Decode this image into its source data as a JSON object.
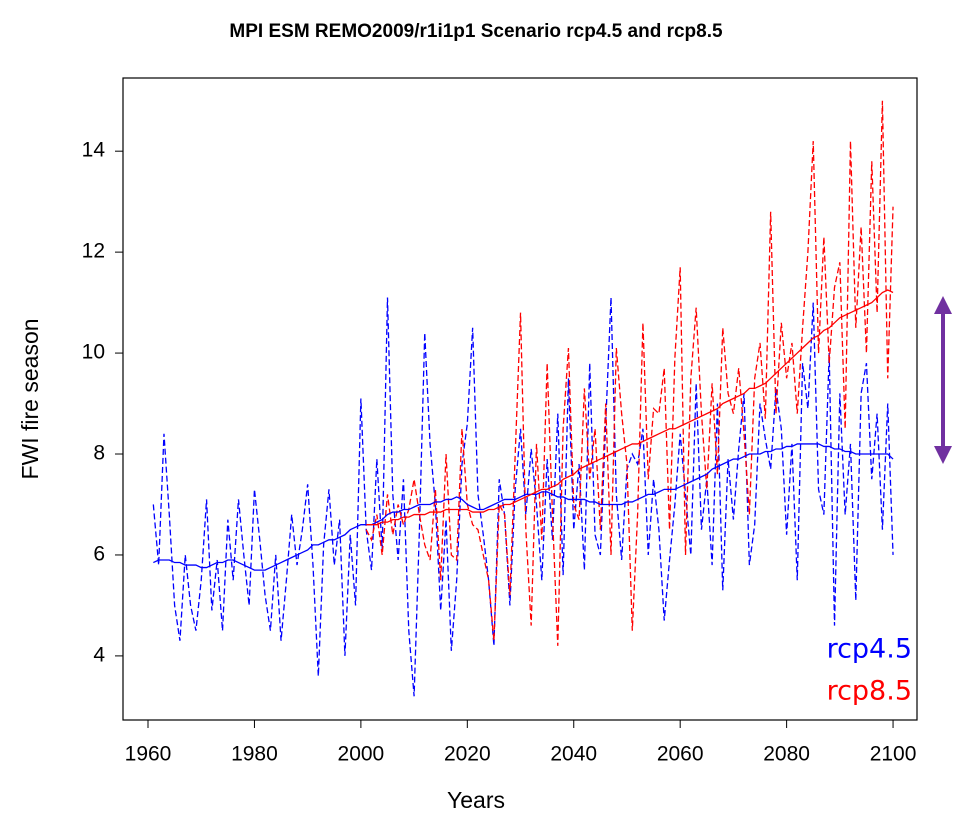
{
  "chart_data": {
    "type": "line",
    "title": "MPI ESM REMO2009/r1i1p1 Scenario rcp4.5 and rcp8.5",
    "xlabel": "Years",
    "ylabel": "FWI fire season",
    "x": [
      1961,
      1962,
      1963,
      1964,
      1965,
      1966,
      1967,
      1968,
      1969,
      1970,
      1971,
      1972,
      1973,
      1974,
      1975,
      1976,
      1977,
      1978,
      1979,
      1980,
      1981,
      1982,
      1983,
      1984,
      1985,
      1986,
      1987,
      1988,
      1989,
      1990,
      1991,
      1992,
      1993,
      1994,
      1995,
      1996,
      1997,
      1998,
      1999,
      2000,
      2001,
      2002,
      2003,
      2004,
      2005,
      2006,
      2007,
      2008,
      2009,
      2010,
      2011,
      2012,
      2013,
      2014,
      2015,
      2016,
      2017,
      2018,
      2019,
      2020,
      2021,
      2022,
      2023,
      2024,
      2025,
      2026,
      2027,
      2028,
      2029,
      2030,
      2031,
      2032,
      2033,
      2034,
      2035,
      2036,
      2037,
      2038,
      2039,
      2040,
      2041,
      2042,
      2043,
      2044,
      2045,
      2046,
      2047,
      2048,
      2049,
      2050,
      2051,
      2052,
      2053,
      2054,
      2055,
      2056,
      2057,
      2058,
      2059,
      2060,
      2061,
      2062,
      2063,
      2064,
      2065,
      2066,
      2067,
      2068,
      2069,
      2070,
      2071,
      2072,
      2073,
      2074,
      2075,
      2076,
      2077,
      2078,
      2079,
      2080,
      2081,
      2082,
      2083,
      2084,
      2085,
      2086,
      2087,
      2088,
      2089,
      2090,
      2091,
      2092,
      2093,
      2094,
      2095,
      2096,
      2097,
      2098,
      2099,
      2100
    ],
    "series": [
      {
        "name": "rcp4.5",
        "color": "#0000ff",
        "values": [
          7.0,
          5.8,
          8.4,
          6.8,
          5.0,
          4.3,
          6.0,
          5.0,
          4.5,
          5.5,
          7.1,
          4.9,
          5.9,
          4.5,
          6.7,
          5.5,
          7.1,
          6.0,
          5.0,
          7.3,
          6.3,
          5.2,
          4.5,
          6.0,
          4.3,
          5.5,
          6.8,
          5.8,
          6.5,
          7.4,
          5.8,
          3.6,
          6.2,
          7.3,
          5.8,
          6.7,
          4.0,
          6.4,
          5.0,
          9.1,
          6.5,
          5.7,
          7.9,
          6.1,
          11.1,
          7.2,
          5.9,
          7.5,
          4.5,
          3.2,
          6.5,
          10.4,
          8.2,
          7.0,
          4.9,
          6.7,
          4.1,
          5.5,
          7.8,
          8.6,
          10.5,
          7.2,
          6.4,
          5.5,
          4.2,
          7.5,
          6.8,
          5.0,
          7.3,
          8.5,
          6.8,
          8.1,
          7.0,
          5.5,
          7.9,
          6.3,
          8.8,
          5.6,
          9.5,
          6.5,
          7.8,
          5.7,
          9.8,
          6.4,
          6.0,
          8.6,
          11.1,
          7.2,
          5.9,
          7.7,
          8.0,
          7.8,
          8.5,
          6.0,
          7.5,
          6.5,
          4.7,
          5.9,
          7.0,
          8.4,
          7.2,
          6.0,
          9.4,
          6.5,
          7.5,
          5.8,
          9.0,
          5.3,
          7.9,
          6.7,
          8.1,
          9.2,
          5.8,
          6.6,
          9.0,
          8.3,
          7.7,
          9.3,
          8.5,
          6.4,
          8.2,
          5.5,
          9.8,
          8.9,
          11.0,
          7.3,
          6.8,
          10.0,
          4.6,
          9.2,
          6.8,
          8.2,
          5.1,
          9.2,
          9.8,
          7.5,
          8.8,
          6.5,
          9.0,
          6.0
        ],
        "trend": [
          5.85,
          5.9,
          5.9,
          5.9,
          5.85,
          5.85,
          5.8,
          5.8,
          5.8,
          5.75,
          5.75,
          5.8,
          5.85,
          5.85,
          5.9,
          5.9,
          5.85,
          5.8,
          5.75,
          5.7,
          5.7,
          5.7,
          5.75,
          5.8,
          5.85,
          5.9,
          5.95,
          6.0,
          6.05,
          6.1,
          6.2,
          6.2,
          6.25,
          6.3,
          6.3,
          6.35,
          6.4,
          6.5,
          6.55,
          6.6,
          6.6,
          6.6,
          6.65,
          6.7,
          6.8,
          6.85,
          6.85,
          6.9,
          6.9,
          6.95,
          7.0,
          7.0,
          7.0,
          7.05,
          7.05,
          7.1,
          7.1,
          7.15,
          7.1,
          7.0,
          6.95,
          6.9,
          6.9,
          6.95,
          7.0,
          7.05,
          7.1,
          7.1,
          7.1,
          7.15,
          7.2,
          7.2,
          7.2,
          7.25,
          7.25,
          7.2,
          7.15,
          7.15,
          7.1,
          7.1,
          7.1,
          7.1,
          7.05,
          7.05,
          7.0,
          7.0,
          7.0,
          7.0,
          7.0,
          7.05,
          7.05,
          7.1,
          7.15,
          7.2,
          7.2,
          7.25,
          7.3,
          7.3,
          7.3,
          7.35,
          7.4,
          7.45,
          7.5,
          7.55,
          7.6,
          7.7,
          7.75,
          7.8,
          7.85,
          7.9,
          7.9,
          7.95,
          8.0,
          8.0,
          8.0,
          8.05,
          8.05,
          8.1,
          8.1,
          8.15,
          8.15,
          8.2,
          8.2,
          8.2,
          8.2,
          8.2,
          8.15,
          8.15,
          8.1,
          8.1,
          8.05,
          8.05,
          8.0,
          8.0,
          8.0,
          8.0,
          8.0,
          8.0,
          8.0,
          7.9
        ]
      },
      {
        "name": "rcp8.5",
        "color": "#ff0000",
        "values": [
          null,
          null,
          null,
          null,
          null,
          null,
          null,
          null,
          null,
          null,
          null,
          null,
          null,
          null,
          null,
          null,
          null,
          null,
          null,
          null,
          null,
          null,
          null,
          null,
          null,
          null,
          null,
          null,
          null,
          null,
          null,
          null,
          null,
          null,
          null,
          null,
          null,
          null,
          null,
          null,
          6.5,
          6.3,
          6.8,
          6.0,
          7.2,
          6.4,
          7.0,
          6.6,
          6.9,
          7.5,
          6.8,
          6.2,
          5.9,
          7.3,
          5.5,
          8.0,
          6.0,
          5.9,
          8.5,
          7.0,
          6.6,
          6.5,
          6.0,
          5.5,
          4.3,
          7.0,
          6.8,
          5.2,
          8.0,
          10.8,
          6.5,
          4.6,
          8.2,
          6.3,
          9.8,
          6.8,
          4.2,
          8.5,
          10.1,
          7.0,
          6.7,
          9.3,
          7.5,
          8.5,
          6.5,
          9.0,
          6.0,
          10.1,
          8.8,
          7.8,
          4.5,
          6.8,
          10.6,
          7.5,
          8.9,
          8.8,
          9.7,
          6.5,
          9.9,
          11.7,
          6.0,
          9.5,
          10.9,
          8.8,
          7.3,
          9.4,
          7.6,
          10.5,
          9.2,
          8.8,
          9.7,
          8.4,
          6.8,
          9.5,
          10.2,
          8.7,
          12.8,
          8.8,
          10.6,
          9.5,
          10.2,
          8.8,
          10.5,
          12.0,
          14.2,
          10.0,
          12.3,
          9.8,
          11.3,
          11.8,
          8.5,
          14.2,
          10.5,
          12.5,
          10.0,
          13.8,
          10.8,
          15.0,
          9.5,
          12.9
        ],
        "trend": [
          null,
          null,
          null,
          null,
          null,
          null,
          null,
          null,
          null,
          null,
          null,
          null,
          null,
          null,
          null,
          null,
          null,
          null,
          null,
          null,
          null,
          null,
          null,
          null,
          null,
          null,
          null,
          null,
          null,
          null,
          null,
          null,
          null,
          null,
          null,
          null,
          null,
          null,
          null,
          null,
          6.6,
          6.6,
          6.6,
          6.65,
          6.65,
          6.7,
          6.7,
          6.75,
          6.75,
          6.8,
          6.8,
          6.8,
          6.85,
          6.85,
          6.85,
          6.9,
          6.9,
          6.9,
          6.9,
          6.9,
          6.85,
          6.85,
          6.85,
          6.9,
          6.9,
          6.95,
          7.0,
          7.0,
          7.05,
          7.1,
          7.15,
          7.2,
          7.25,
          7.3,
          7.3,
          7.35,
          7.4,
          7.5,
          7.55,
          7.6,
          7.7,
          7.75,
          7.8,
          7.85,
          7.9,
          7.95,
          8.0,
          8.05,
          8.1,
          8.15,
          8.2,
          8.2,
          8.25,
          8.3,
          8.35,
          8.4,
          8.45,
          8.5,
          8.5,
          8.55,
          8.6,
          8.65,
          8.7,
          8.75,
          8.8,
          8.85,
          8.9,
          9.0,
          9.05,
          9.1,
          9.15,
          9.2,
          9.3,
          9.3,
          9.35,
          9.4,
          9.5,
          9.6,
          9.7,
          9.8,
          9.9,
          10.0,
          10.1,
          10.2,
          10.3,
          10.35,
          10.45,
          10.5,
          10.6,
          10.7,
          10.75,
          10.8,
          10.85,
          10.9,
          10.95,
          11.0,
          11.1,
          11.2,
          11.25,
          11.2
        ]
      }
    ],
    "xlim": [
      1955.3,
      2104.5
    ],
    "xticks": [
      1960,
      1980,
      2000,
      2020,
      2040,
      2060,
      2080,
      2100
    ],
    "ylim": [
      2.73,
      15.45
    ],
    "yticks": [
      4,
      6,
      8,
      10,
      12,
      14
    ],
    "grid": false,
    "legend": "bottom-right"
  }
}
